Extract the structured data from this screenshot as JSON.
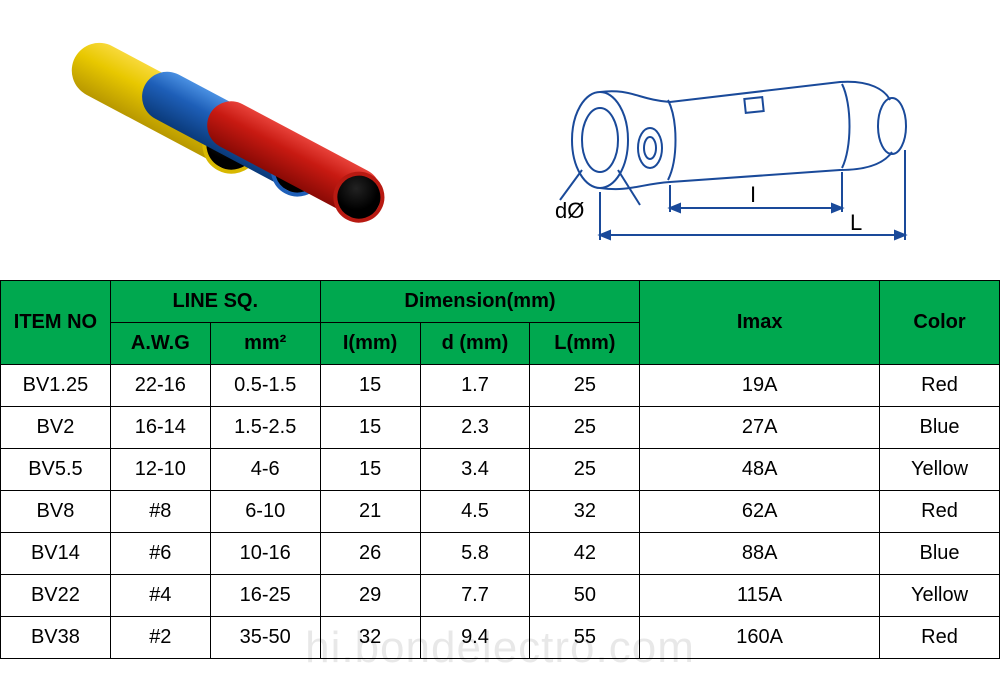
{
  "diagram": {
    "labels": {
      "diameter": "dØ",
      "inner_length": "I",
      "outer_length": "L"
    },
    "stroke_color": "#1a4a9a",
    "stroke_width": 2
  },
  "product_colors": {
    "yellow": "#e8c800",
    "blue": "#1e5fb8",
    "red": "#c81a12"
  },
  "table": {
    "header_bg": "#00a84f",
    "border_color": "#000000",
    "font_size": 20,
    "columns": {
      "item_no": "ITEM NO",
      "line_sq": "LINE SQ.",
      "awg": "A.W.G",
      "mm2": "mm²",
      "dimension": "Dimension(mm)",
      "i_mm": "I(mm)",
      "d_mm": "d (mm)",
      "l_mm": "L(mm)",
      "imax": "Imax",
      "color": "Color"
    },
    "rows": [
      {
        "item": "BV1.25",
        "awg": "22-16",
        "mm2": "0.5-1.5",
        "i": "15",
        "d": "1.7",
        "l": "25",
        "imax": "19A",
        "color": "Red"
      },
      {
        "item": "BV2",
        "awg": "16-14",
        "mm2": "1.5-2.5",
        "i": "15",
        "d": "2.3",
        "l": "25",
        "imax": "27A",
        "color": "Blue"
      },
      {
        "item": "BV5.5",
        "awg": "12-10",
        "mm2": "4-6",
        "i": "15",
        "d": "3.4",
        "l": "25",
        "imax": "48A",
        "color": "Yellow"
      },
      {
        "item": "BV8",
        "awg": "#8",
        "mm2": "6-10",
        "i": "21",
        "d": "4.5",
        "l": "32",
        "imax": "62A",
        "color": "Red"
      },
      {
        "item": "BV14",
        "awg": "#6",
        "mm2": "10-16",
        "i": "26",
        "d": "5.8",
        "l": "42",
        "imax": "88A",
        "color": "Blue"
      },
      {
        "item": "BV22",
        "awg": "#4",
        "mm2": "16-25",
        "i": "29",
        "d": "7.7",
        "l": "50",
        "imax": "115A",
        "color": "Yellow"
      },
      {
        "item": "BV38",
        "awg": "#2",
        "mm2": "35-50",
        "i": "32",
        "d": "9.4",
        "l": "55",
        "imax": "160A",
        "color": "Red"
      }
    ]
  },
  "watermark": "hi.bondelectro.com"
}
